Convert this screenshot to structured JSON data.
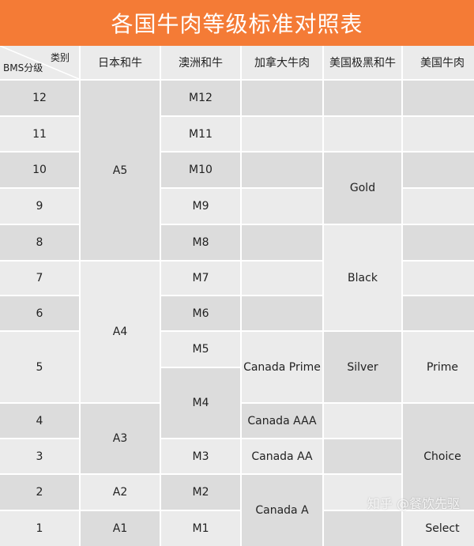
{
  "title": "各国牛肉等级标准对照表",
  "header": {
    "corner_top": "类别",
    "corner_bottom": "BMS分级",
    "columns": [
      "日本和牛",
      "澳洲和牛",
      "加拿大牛肉",
      "美国极黑和牛",
      "美国牛肉"
    ]
  },
  "bms": [
    "12",
    "11",
    "10",
    "9",
    "8",
    "7",
    "6",
    "5",
    "4",
    "3",
    "2",
    "1"
  ],
  "japan": {
    "A5": "A5",
    "A4": "A4",
    "A3": "A3",
    "A2": "A2",
    "A1": "A1"
  },
  "australia": [
    "M12",
    "M11",
    "M10",
    "M9",
    "M8",
    "M7",
    "M6",
    "M5",
    "M4",
    "M3",
    "M2",
    "M1"
  ],
  "canada": {
    "prime": "Canada Prime",
    "aaa": "Canada AAA",
    "aa": "Canada AA",
    "a": "Canada A"
  },
  "us_black": {
    "gold": "Gold",
    "black": "Black",
    "silver": "Silver"
  },
  "usda": {
    "prime": "Prime",
    "choice": "Choice",
    "select": "Select"
  },
  "watermark": "知乎 @餐饮先驱",
  "colors": {
    "title_bg": "#f47b36",
    "cell_dark": "#dcdcdc",
    "cell_light": "#ebebeb"
  }
}
